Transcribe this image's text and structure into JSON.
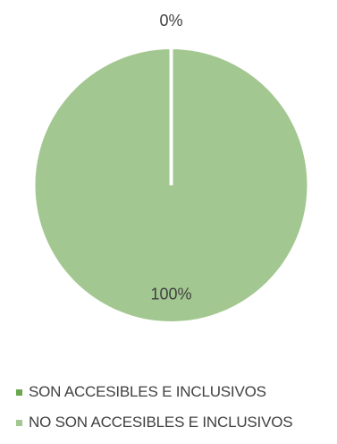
{
  "chart_data": {
    "type": "pie",
    "title": "",
    "slices": [
      {
        "label": "SON ACCESIBLES E INCLUSIVOS",
        "value": 0,
        "data_label": "0%",
        "color": "#6aa84f"
      },
      {
        "label": "NO SON ACCESIBLES E INCLUSIVOS",
        "value": 100,
        "data_label": "100%",
        "color": "#a3c790"
      }
    ],
    "legend_position": "bottom-left",
    "slice_border_color": "#ffffff"
  }
}
